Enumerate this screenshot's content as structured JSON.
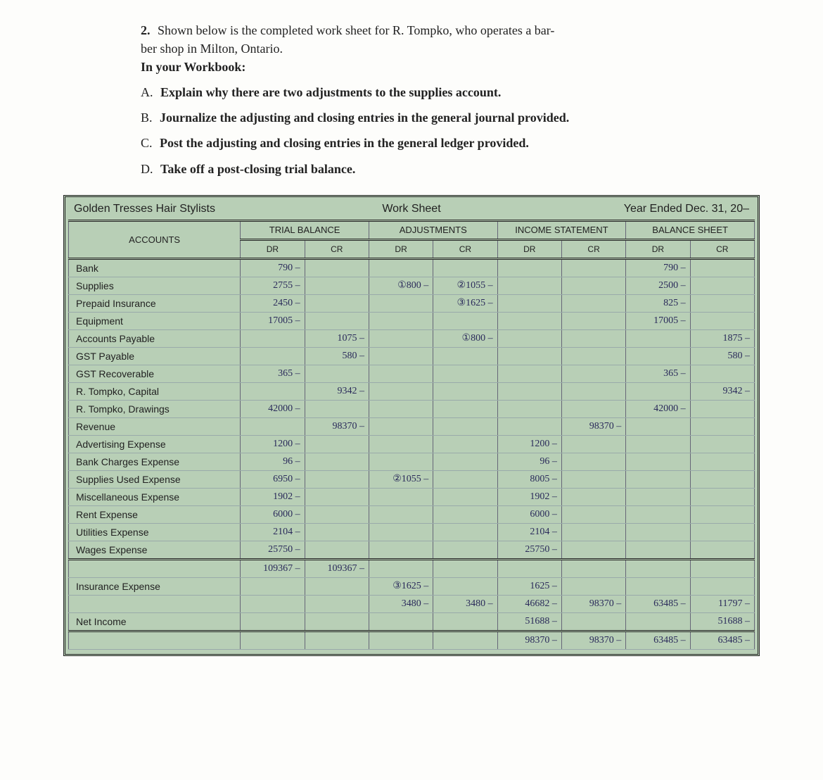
{
  "question": {
    "number": "2.",
    "intro_line1": "Shown below is the completed work sheet for R. Tompko, who operates a bar-",
    "intro_line2": "ber shop in Milton, Ontario.",
    "workbook_label": "In your Workbook:",
    "parts": {
      "A": "Explain why there are two adjustments to the supplies account.",
      "B": "Journalize the adjusting and closing entries in the general journal provided.",
      "C": "Post the adjusting and closing entries in the general ledger provided.",
      "D": "Take off a post-closing trial balance."
    }
  },
  "sheet": {
    "title_left": "Golden Tresses Hair Stylists",
    "title_mid": "Work Sheet",
    "title_right": "Year Ended Dec. 31, 20–",
    "col_accounts": "ACCOUNTS",
    "sections": {
      "trial": "TRIAL BALANCE",
      "adj": "ADJUSTMENTS",
      "inc": "INCOME STATEMENT",
      "bal": "BALANCE SHEET"
    },
    "dr": "DR",
    "cr": "CR"
  },
  "rows": [
    {
      "acct": "Bank",
      "tb_dr": "790 –",
      "tb_cr": "",
      "aj_dr": "",
      "aj_cr": "",
      "is_dr": "",
      "is_cr": "",
      "bs_dr": "790 –",
      "bs_cr": ""
    },
    {
      "acct": "Supplies",
      "tb_dr": "2755 –",
      "tb_cr": "",
      "aj_dr": "①800 –",
      "aj_cr": "②1055 –",
      "is_dr": "",
      "is_cr": "",
      "bs_dr": "2500 –",
      "bs_cr": ""
    },
    {
      "acct": "Prepaid Insurance",
      "tb_dr": "2450 –",
      "tb_cr": "",
      "aj_dr": "",
      "aj_cr": "③1625 –",
      "is_dr": "",
      "is_cr": "",
      "bs_dr": "825 –",
      "bs_cr": ""
    },
    {
      "acct": "Equipment",
      "tb_dr": "17005 –",
      "tb_cr": "",
      "aj_dr": "",
      "aj_cr": "",
      "is_dr": "",
      "is_cr": "",
      "bs_dr": "17005 –",
      "bs_cr": ""
    },
    {
      "acct": "Accounts Payable",
      "tb_dr": "",
      "tb_cr": "1075 –",
      "aj_dr": "",
      "aj_cr": "①800 –",
      "is_dr": "",
      "is_cr": "",
      "bs_dr": "",
      "bs_cr": "1875 –"
    },
    {
      "acct": "GST Payable",
      "tb_dr": "",
      "tb_cr": "580 –",
      "aj_dr": "",
      "aj_cr": "",
      "is_dr": "",
      "is_cr": "",
      "bs_dr": "",
      "bs_cr": "580 –"
    },
    {
      "acct": "GST Recoverable",
      "tb_dr": "365 –",
      "tb_cr": "",
      "aj_dr": "",
      "aj_cr": "",
      "is_dr": "",
      "is_cr": "",
      "bs_dr": "365 –",
      "bs_cr": ""
    },
    {
      "acct": "R. Tompko, Capital",
      "tb_dr": "",
      "tb_cr": "9342 –",
      "aj_dr": "",
      "aj_cr": "",
      "is_dr": "",
      "is_cr": "",
      "bs_dr": "",
      "bs_cr": "9342 –"
    },
    {
      "acct": "R. Tompko, Drawings",
      "tb_dr": "42000 –",
      "tb_cr": "",
      "aj_dr": "",
      "aj_cr": "",
      "is_dr": "",
      "is_cr": "",
      "bs_dr": "42000 –",
      "bs_cr": ""
    },
    {
      "acct": "Revenue",
      "tb_dr": "",
      "tb_cr": "98370 –",
      "aj_dr": "",
      "aj_cr": "",
      "is_dr": "",
      "is_cr": "98370 –",
      "bs_dr": "",
      "bs_cr": ""
    },
    {
      "acct": "Advertising Expense",
      "tb_dr": "1200 –",
      "tb_cr": "",
      "aj_dr": "",
      "aj_cr": "",
      "is_dr": "1200 –",
      "is_cr": "",
      "bs_dr": "",
      "bs_cr": ""
    },
    {
      "acct": "Bank Charges Expense",
      "tb_dr": "96 –",
      "tb_cr": "",
      "aj_dr": "",
      "aj_cr": "",
      "is_dr": "96 –",
      "is_cr": "",
      "bs_dr": "",
      "bs_cr": ""
    },
    {
      "acct": "Supplies Used Expense",
      "tb_dr": "6950 –",
      "tb_cr": "",
      "aj_dr": "②1055 –",
      "aj_cr": "",
      "is_dr": "8005 –",
      "is_cr": "",
      "bs_dr": "",
      "bs_cr": ""
    },
    {
      "acct": "Miscellaneous Expense",
      "tb_dr": "1902 –",
      "tb_cr": "",
      "aj_dr": "",
      "aj_cr": "",
      "is_dr": "1902 –",
      "is_cr": "",
      "bs_dr": "",
      "bs_cr": ""
    },
    {
      "acct": "Rent Expense",
      "tb_dr": "6000 –",
      "tb_cr": "",
      "aj_dr": "",
      "aj_cr": "",
      "is_dr": "6000 –",
      "is_cr": "",
      "bs_dr": "",
      "bs_cr": ""
    },
    {
      "acct": "Utilities Expense",
      "tb_dr": "2104 –",
      "tb_cr": "",
      "aj_dr": "",
      "aj_cr": "",
      "is_dr": "2104 –",
      "is_cr": "",
      "bs_dr": "",
      "bs_cr": ""
    },
    {
      "acct": "Wages Expense",
      "tb_dr": "25750 –",
      "tb_cr": "",
      "aj_dr": "",
      "aj_cr": "",
      "is_dr": "25750 –",
      "is_cr": "",
      "bs_dr": "",
      "bs_cr": ""
    },
    {
      "acct": "",
      "tb_dr": "109367 –",
      "tb_cr": "109367 –",
      "aj_dr": "",
      "aj_cr": "",
      "is_dr": "",
      "is_cr": "",
      "bs_dr": "",
      "bs_cr": "",
      "dbl": true
    },
    {
      "acct": "Insurance Expense",
      "tb_dr": "",
      "tb_cr": "",
      "aj_dr": "③1625 –",
      "aj_cr": "",
      "is_dr": "1625 –",
      "is_cr": "",
      "bs_dr": "",
      "bs_cr": ""
    },
    {
      "acct": "",
      "tb_dr": "",
      "tb_cr": "",
      "aj_dr": "3480 –",
      "aj_cr": "3480 –",
      "is_dr": "46682 –",
      "is_cr": "98370 –",
      "bs_dr": "63485 –",
      "bs_cr": "11797 –"
    },
    {
      "acct": "Net Income",
      "tb_dr": "",
      "tb_cr": "",
      "aj_dr": "",
      "aj_cr": "",
      "is_dr": "51688 –",
      "is_cr": "",
      "bs_dr": "",
      "bs_cr": "51688 –"
    },
    {
      "acct": "",
      "tb_dr": "",
      "tb_cr": "",
      "aj_dr": "",
      "aj_cr": "",
      "is_dr": "98370 –",
      "is_cr": "98370 –",
      "bs_dr": "63485 –",
      "bs_cr": "63485 –",
      "dbl": true
    }
  ]
}
